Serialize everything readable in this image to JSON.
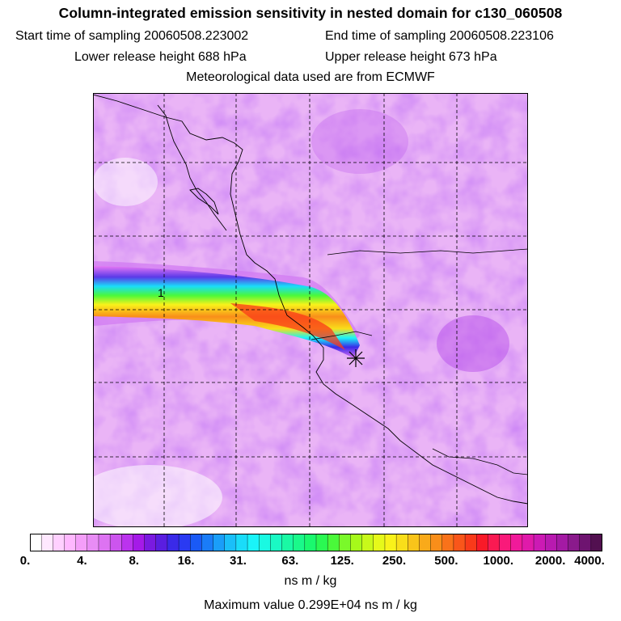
{
  "header": {
    "title": "Column-integrated emission sensitivity in nested domain for c130_060508",
    "start_label": "Start time of sampling 20060508.223002",
    "end_label": "End time of sampling 20060508.223106",
    "lower_label": "Lower release height  688 hPa",
    "upper_label": "Upper release height  673 hPa",
    "met_label": "Meteorological data used are from ECMWF"
  },
  "map": {
    "plume_label": "1",
    "release_marker": "release-point"
  },
  "colorbar": {
    "ticks": [
      "0.",
      "4.",
      "8.",
      "16.",
      "31.",
      "63.",
      "125.",
      "250.",
      "500.",
      "1000.",
      "2000.",
      "4000."
    ],
    "colors": [
      "#ffffff",
      "#ffe8ff",
      "#ffd0ff",
      "#ffb8ff",
      "#f49ef9",
      "#e88cf5",
      "#dd73f2",
      "#cc55ee",
      "#bb33ee",
      "#a51ae8",
      "#7a1ae0",
      "#5a1ee0",
      "#3a2ae8",
      "#2a3af2",
      "#1a5af6",
      "#1a7cf8",
      "#1a9ef9",
      "#1abff9",
      "#1adcf9",
      "#1af4f9",
      "#1af9e2",
      "#1af9c4",
      "#1af9a4",
      "#1af98a",
      "#1af96e",
      "#2af952",
      "#4af93a",
      "#7af92a",
      "#a6f91a",
      "#c8f91a",
      "#e6f91a",
      "#f9f21a",
      "#f9de1a",
      "#f9c41a",
      "#f9aa1a",
      "#f98e1a",
      "#f9721a",
      "#f9561a",
      "#f93a1a",
      "#f91a28",
      "#f91a52",
      "#f91a7a",
      "#f01a9a",
      "#e01aaa",
      "#cc1ab4",
      "#b81ab0",
      "#a41aa4",
      "#8a1a8c",
      "#6e1470",
      "#521050"
    ],
    "units": "ns m / kg",
    "max_value": "Maximum value  0.299E+04 ns m / kg"
  }
}
